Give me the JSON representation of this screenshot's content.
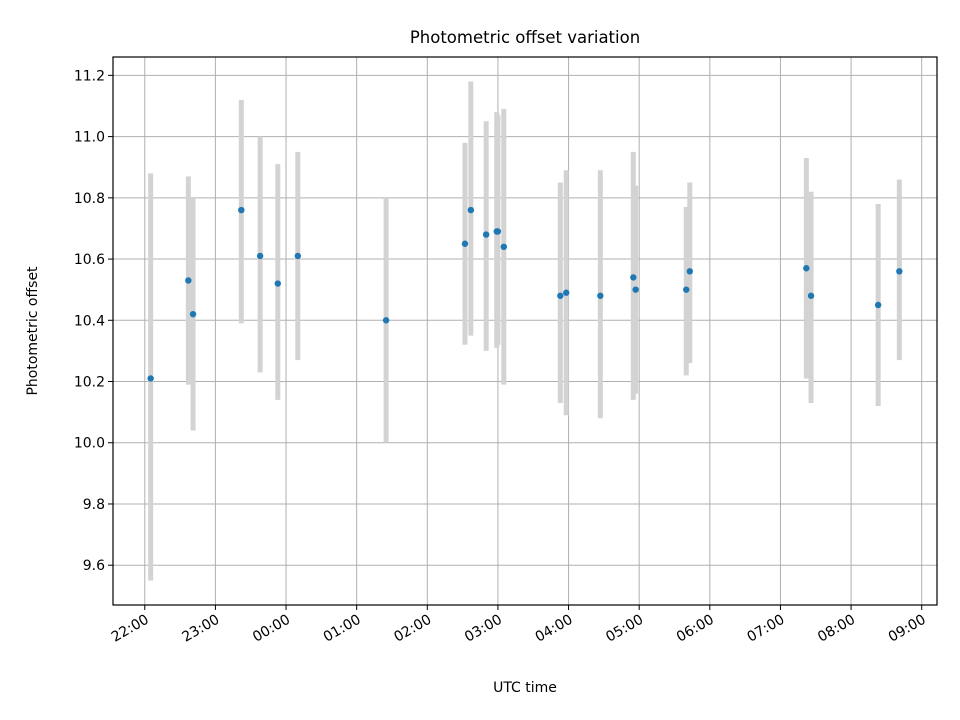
{
  "chart_data": {
    "type": "scatter",
    "title": "Photometric offset variation",
    "xlabel": "UTC time",
    "ylabel": "Photometric offset",
    "xlim": [
      "21:33",
      "09:13"
    ],
    "ylim": [
      9.47,
      11.26
    ],
    "x_ticks": [
      "22:00",
      "23:00",
      "00:00",
      "01:00",
      "02:00",
      "03:00",
      "04:00",
      "05:00",
      "06:00",
      "07:00",
      "08:00",
      "09:00"
    ],
    "y_ticks": [
      "9.6",
      "9.8",
      "10.0",
      "10.2",
      "10.4",
      "10.6",
      "10.8",
      "11.0",
      "11.2"
    ],
    "grid": true,
    "marker_color": "#1f77b4",
    "errorbar_color": "#d3d3d3",
    "points": [
      {
        "x": "22:05",
        "y": 10.21,
        "err_low": 9.55,
        "err_high": 10.88
      },
      {
        "x": "22:37",
        "y": 10.53,
        "err_low": 10.19,
        "err_high": 10.87
      },
      {
        "x": "22:41",
        "y": 10.42,
        "err_low": 10.04,
        "err_high": 10.8
      },
      {
        "x": "23:22",
        "y": 10.76,
        "err_low": 10.39,
        "err_high": 11.12
      },
      {
        "x": "23:38",
        "y": 10.61,
        "err_low": 10.23,
        "err_high": 11.0
      },
      {
        "x": "23:53",
        "y": 10.52,
        "err_low": 10.14,
        "err_high": 10.91
      },
      {
        "x": "00:10",
        "y": 10.61,
        "err_low": 10.27,
        "err_high": 10.95
      },
      {
        "x": "01:25",
        "y": 10.4,
        "err_low": 10.0,
        "err_high": 10.8
      },
      {
        "x": "02:32",
        "y": 10.65,
        "err_low": 10.32,
        "err_high": 10.98
      },
      {
        "x": "02:37",
        "y": 10.76,
        "err_low": 10.35,
        "err_high": 11.18
      },
      {
        "x": "02:50",
        "y": 10.68,
        "err_low": 10.3,
        "err_high": 11.05
      },
      {
        "x": "02:59",
        "y": 10.69,
        "err_low": 10.31,
        "err_high": 11.08
      },
      {
        "x": "03:00",
        "y": 10.69,
        "err_low": 10.32,
        "err_high": 11.07
      },
      {
        "x": "03:05",
        "y": 10.64,
        "err_low": 10.19,
        "err_high": 11.09
      },
      {
        "x": "03:53",
        "y": 10.48,
        "err_low": 10.13,
        "err_high": 10.85
      },
      {
        "x": "03:58",
        "y": 10.49,
        "err_low": 10.09,
        "err_high": 10.89
      },
      {
        "x": "04:27",
        "y": 10.48,
        "err_low": 10.08,
        "err_high": 10.89
      },
      {
        "x": "04:55",
        "y": 10.54,
        "err_low": 10.14,
        "err_high": 10.95
      },
      {
        "x": "04:57",
        "y": 10.5,
        "err_low": 10.16,
        "err_high": 10.84
      },
      {
        "x": "05:40",
        "y": 10.5,
        "err_low": 10.22,
        "err_high": 10.77
      },
      {
        "x": "05:43",
        "y": 10.56,
        "err_low": 10.26,
        "err_high": 10.85
      },
      {
        "x": "07:22",
        "y": 10.57,
        "err_low": 10.21,
        "err_high": 10.93
      },
      {
        "x": "07:26",
        "y": 10.48,
        "err_low": 10.13,
        "err_high": 10.82
      },
      {
        "x": "08:23",
        "y": 10.45,
        "err_low": 10.12,
        "err_high": 10.78
      },
      {
        "x": "08:41",
        "y": 10.56,
        "err_low": 10.27,
        "err_high": 10.86
      }
    ]
  }
}
